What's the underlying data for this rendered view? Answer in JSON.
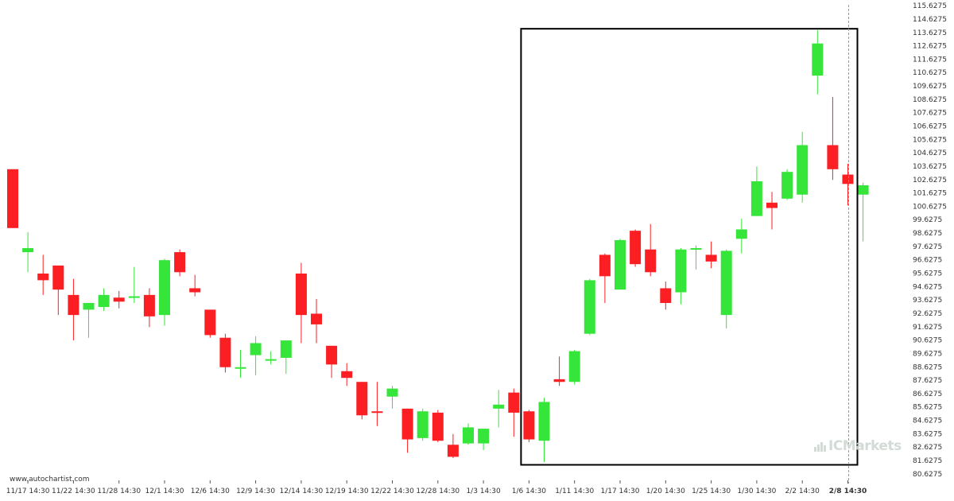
{
  "source_label": "www.autochartist.com",
  "brand": {
    "watermark": "ICMarkets",
    "logo_mark": "bar-chart-icon"
  },
  "colors": {
    "up": "#36e53a",
    "down": "#fb1e22",
    "frame": "#000000",
    "grid_dash": "#999999",
    "axis_text": "#333333"
  },
  "chart_data": {
    "type": "candlestick",
    "title": "",
    "xlabel": "",
    "ylabel": "",
    "ylim": [
      80.1275,
      115.6275
    ],
    "grid": false,
    "y_ticks": [
      "115.6275",
      "114.6275",
      "113.6275",
      "112.6275",
      "111.6275",
      "110.6275",
      "109.6275",
      "108.6275",
      "107.6275",
      "106.6275",
      "105.6275",
      "104.6275",
      "103.6275",
      "102.6275",
      "101.6275",
      "100.6275",
      "99.6275",
      "98.6275",
      "97.6275",
      "96.6275",
      "95.6275",
      "94.6275",
      "93.6275",
      "92.6275",
      "91.6275",
      "90.6275",
      "89.6275",
      "88.6275",
      "87.6275",
      "86.6275",
      "85.6275",
      "84.6275",
      "83.6275",
      "82.6275",
      "81.6275",
      "80.6275"
    ],
    "x_ticks": [
      {
        "label": "11/17 14:30",
        "index": 1,
        "bold": false
      },
      {
        "label": "11/22 14:30",
        "index": 4,
        "bold": false
      },
      {
        "label": "11/28 14:30",
        "index": 7,
        "bold": false
      },
      {
        "label": "12/1 14:30",
        "index": 10,
        "bold": false
      },
      {
        "label": "12/6 14:30",
        "index": 13,
        "bold": false
      },
      {
        "label": "12/9 14:30",
        "index": 16,
        "bold": false
      },
      {
        "label": "12/14 14:30",
        "index": 19,
        "bold": false
      },
      {
        "label": "12/19 14:30",
        "index": 22,
        "bold": false
      },
      {
        "label": "12/22 14:30",
        "index": 25,
        "bold": false
      },
      {
        "label": "12/28 14:30",
        "index": 28,
        "bold": false
      },
      {
        "label": "1/3 14:30",
        "index": 31,
        "bold": false
      },
      {
        "label": "1/6 14:30",
        "index": 34,
        "bold": false
      },
      {
        "label": "1/11 14:30",
        "index": 37,
        "bold": false
      },
      {
        "label": "1/17 14:30",
        "index": 40,
        "bold": false
      },
      {
        "label": "1/20 14:30",
        "index": 43,
        "bold": false
      },
      {
        "label": "1/25 14:30",
        "index": 46,
        "bold": false
      },
      {
        "label": "1/30 14:30",
        "index": 49,
        "bold": false
      },
      {
        "label": "2/2 14:30",
        "index": 52,
        "bold": false
      },
      {
        "label": "2/8 14:30",
        "index": 55,
        "bold": true
      }
    ],
    "candles": [
      {
        "o": 103.4,
        "h": 103.4,
        "l": 99.0,
        "c": 99.0
      },
      {
        "o": 97.2,
        "h": 98.7,
        "l": 95.7,
        "c": 97.5
      },
      {
        "o": 95.6,
        "h": 97.0,
        "l": 94.0,
        "c": 95.1
      },
      {
        "o": 96.2,
        "h": 96.2,
        "l": 92.5,
        "c": 94.4
      },
      {
        "o": 94.0,
        "h": 95.2,
        "l": 90.6,
        "c": 92.5
      },
      {
        "o": 92.9,
        "h": 93.4,
        "l": 90.8,
        "c": 93.4
      },
      {
        "o": 93.1,
        "h": 94.5,
        "l": 92.8,
        "c": 94.0
      },
      {
        "o": 93.8,
        "h": 94.3,
        "l": 93.0,
        "c": 93.5
      },
      {
        "o": 93.9,
        "h": 96.1,
        "l": 93.4,
        "c": 93.9
      },
      {
        "o": 94.0,
        "h": 94.5,
        "l": 91.6,
        "c": 92.4
      },
      {
        "o": 92.5,
        "h": 96.7,
        "l": 91.7,
        "c": 96.6
      },
      {
        "o": 97.2,
        "h": 97.4,
        "l": 95.4,
        "c": 95.7
      },
      {
        "o": 94.5,
        "h": 95.5,
        "l": 93.9,
        "c": 94.2
      },
      {
        "o": 92.9,
        "h": 92.9,
        "l": 90.8,
        "c": 91.0
      },
      {
        "o": 90.8,
        "h": 91.1,
        "l": 88.2,
        "c": 88.6
      },
      {
        "o": 88.6,
        "h": 89.9,
        "l": 87.8,
        "c": 88.6
      },
      {
        "o": 89.5,
        "h": 90.9,
        "l": 88.0,
        "c": 90.4
      },
      {
        "o": 89.1,
        "h": 89.8,
        "l": 88.8,
        "c": 89.2
      },
      {
        "o": 89.3,
        "h": 90.6,
        "l": 88.1,
        "c": 90.6
      },
      {
        "o": 95.6,
        "h": 96.4,
        "l": 90.4,
        "c": 92.5
      },
      {
        "o": 92.6,
        "h": 93.7,
        "l": 90.4,
        "c": 91.8
      },
      {
        "o": 90.2,
        "h": 90.2,
        "l": 87.8,
        "c": 88.8
      },
      {
        "o": 88.3,
        "h": 88.9,
        "l": 87.2,
        "c": 87.8
      },
      {
        "o": 87.5,
        "h": 87.5,
        "l": 84.7,
        "c": 85.0
      },
      {
        "o": 85.3,
        "h": 87.5,
        "l": 84.2,
        "c": 85.2
      },
      {
        "o": 86.4,
        "h": 87.2,
        "l": 85.5,
        "c": 87.0
      },
      {
        "o": 85.5,
        "h": 85.5,
        "l": 82.2,
        "c": 83.2
      },
      {
        "o": 83.3,
        "h": 85.5,
        "l": 83.1,
        "c": 85.3
      },
      {
        "o": 85.2,
        "h": 85.4,
        "l": 83.0,
        "c": 83.1
      },
      {
        "o": 82.8,
        "h": 83.6,
        "l": 81.8,
        "c": 81.9
      },
      {
        "o": 82.9,
        "h": 84.4,
        "l": 82.8,
        "c": 84.1
      },
      {
        "o": 82.9,
        "h": 84.0,
        "l": 82.4,
        "c": 84.0
      },
      {
        "o": 85.5,
        "h": 86.9,
        "l": 84.1,
        "c": 85.8
      },
      {
        "o": 86.7,
        "h": 87.0,
        "l": 83.4,
        "c": 85.2
      },
      {
        "o": 85.3,
        "h": 85.4,
        "l": 83.0,
        "c": 83.2
      },
      {
        "o": 83.1,
        "h": 86.3,
        "l": 81.5,
        "c": 86.0
      },
      {
        "o": 87.7,
        "h": 89.4,
        "l": 87.2,
        "c": 87.5
      },
      {
        "o": 87.5,
        "h": 89.9,
        "l": 87.3,
        "c": 89.8
      },
      {
        "o": 91.1,
        "h": 95.2,
        "l": 91.0,
        "c": 95.1
      },
      {
        "o": 97.0,
        "h": 97.1,
        "l": 93.4,
        "c": 95.4
      },
      {
        "o": 94.4,
        "h": 98.2,
        "l": 94.4,
        "c": 98.1
      },
      {
        "o": 98.8,
        "h": 98.9,
        "l": 96.1,
        "c": 96.3
      },
      {
        "o": 97.4,
        "h": 99.3,
        "l": 95.4,
        "c": 95.7
      },
      {
        "o": 94.5,
        "h": 95.0,
        "l": 92.9,
        "c": 93.4
      },
      {
        "o": 94.2,
        "h": 97.5,
        "l": 93.3,
        "c": 97.4
      },
      {
        "o": 97.5,
        "h": 97.7,
        "l": 95.9,
        "c": 97.5
      },
      {
        "o": 97.0,
        "h": 98.0,
        "l": 96.0,
        "c": 96.5
      },
      {
        "o": 92.5,
        "h": 97.4,
        "l": 91.5,
        "c": 97.3
      },
      {
        "o": 98.2,
        "h": 99.7,
        "l": 97.1,
        "c": 98.9
      },
      {
        "o": 99.9,
        "h": 103.6,
        "l": 99.9,
        "c": 102.5
      },
      {
        "o": 100.9,
        "h": 101.7,
        "l": 98.9,
        "c": 100.5
      },
      {
        "o": 101.2,
        "h": 103.4,
        "l": 101.1,
        "c": 103.2
      },
      {
        "o": 101.5,
        "h": 106.2,
        "l": 100.9,
        "c": 105.2
      },
      {
        "o": 110.4,
        "h": 113.8,
        "l": 109.0,
        "c": 112.8
      },
      {
        "o": 105.2,
        "h": 108.8,
        "l": 102.6,
        "c": 103.4
      },
      {
        "o": 103.0,
        "h": 103.8,
        "l": 100.7,
        "c": 102.3
      },
      {
        "o": 101.5,
        "h": 102.4,
        "l": 98.0,
        "c": 102.2
      }
    ],
    "annotations": [
      {
        "type": "rectangle",
        "from_index": 34,
        "to_index": 55,
        "y_top": 113.9,
        "y_bottom": 81.3
      },
      {
        "type": "vline-dashed",
        "index": 55
      }
    ]
  }
}
